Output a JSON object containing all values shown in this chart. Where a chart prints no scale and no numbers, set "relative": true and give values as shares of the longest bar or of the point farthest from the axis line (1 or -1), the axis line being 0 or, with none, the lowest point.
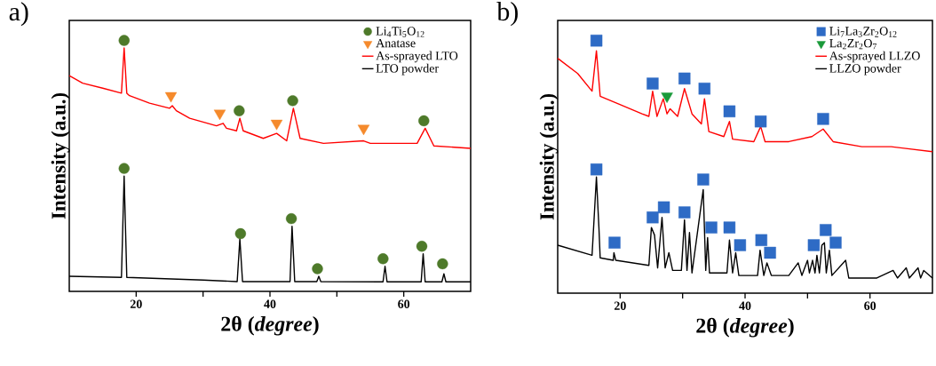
{
  "chart_data": [
    {
      "type": "line",
      "title": "a)",
      "xlabel": "2θ (*degree*)",
      "ylabel": "Intensity (a.u.)",
      "relative": true,
      "xlim": [
        10,
        70
      ],
      "xticks": [
        20,
        40,
        60
      ],
      "tick_labels": "x",
      "legend": "top right",
      "series": [
        {
          "name": "Li$_{4}$Ti$_{5}$O$_{12}$",
          "type": "scatter",
          "marker": "circle",
          "color": "#4e7a2a",
          "x": [
            18.2,
            35.4,
            43.4,
            63,
            18.2,
            35.6,
            43.2,
            47.1,
            56.9,
            62.7,
            65.8
          ],
          "values": [
            1.0,
            0.72,
            0.76,
            0.68,
            0.49,
            0.23,
            0.29,
            0.09,
            0.13,
            0.18,
            0.11
          ]
        },
        {
          "name": "Anatase",
          "type": "scatter",
          "marker": "triangle",
          "color": "#f58a2c",
          "x": [
            25.2,
            32.5,
            41,
            54
          ],
          "values": [
            0.78,
            0.71,
            0.67,
            0.65
          ]
        },
        {
          "name": "As-sprayed LTO",
          "color": "#ff0000",
          "x": [
            10,
            12,
            15,
            17.8,
            18.2,
            18.6,
            19,
            22,
            25,
            25.4,
            26,
            28,
            32,
            33,
            33.5,
            35,
            35.5,
            36,
            39,
            41,
            42.5,
            43.5,
            44.5,
            48,
            54,
            55,
            56,
            62,
            63.2,
            64.5,
            70
          ],
          "values": [
            0.86,
            0.83,
            0.81,
            0.79,
            0.97,
            0.79,
            0.78,
            0.75,
            0.73,
            0.74,
            0.72,
            0.69,
            0.66,
            0.67,
            0.65,
            0.64,
            0.69,
            0.64,
            0.61,
            0.63,
            0.6,
            0.73,
            0.61,
            0.59,
            0.6,
            0.59,
            0.59,
            0.59,
            0.65,
            0.58,
            0.57
          ]
        },
        {
          "name": "LTO powder",
          "color": "#000000",
          "x": [
            10,
            17.8,
            18.2,
            18.6,
            30,
            35.1,
            35.5,
            35.9,
            43,
            43.3,
            43.7,
            47.0,
            47.3,
            47.6,
            56.9,
            57.2,
            57.5,
            62.6,
            62.9,
            63.2,
            65.7,
            66,
            66.3,
            70
          ],
          "values": [
            0.06,
            0.056,
            0.46,
            0.056,
            0.045,
            0.039,
            0.21,
            0.039,
            0.039,
            0.26,
            0.039,
            0.039,
            0.06,
            0.039,
            0.038,
            0.1,
            0.038,
            0.038,
            0.15,
            0.038,
            0.038,
            0.07,
            0.038,
            0.038
          ]
        }
      ]
    },
    {
      "type": "line",
      "title": "b)",
      "xlabel": "2θ (*degree*)",
      "ylabel": "Intensity (a.u.)",
      "relative": true,
      "xlim": [
        10,
        70
      ],
      "xticks": [
        20,
        40,
        60
      ],
      "tick_labels": "x",
      "legend": "top right",
      "series": [
        {
          "name": "Li$_{7}$La$_{3}$Zr$_{2}$O$_{12}$",
          "type": "scatter",
          "marker": "square",
          "color": "#2e6bc5",
          "x": [
            16.2,
            25.2,
            30.3,
            33.5,
            37.5,
            42.5,
            52.5,
            16.2,
            19.1,
            25.2,
            27.0,
            30.3,
            33.3,
            34.6,
            37.5,
            39.2,
            42.6,
            44.0,
            51.0,
            52.9,
            54.5
          ],
          "values": [
            1.0,
            0.83,
            0.85,
            0.81,
            0.72,
            0.68,
            0.69,
            0.49,
            0.2,
            0.3,
            0.34,
            0.32,
            0.45,
            0.26,
            0.26,
            0.19,
            0.21,
            0.16,
            0.19,
            0.25,
            0.2
          ]
        },
        {
          "name": "La$_{2}$Zr$_{2}$O$_{7}$",
          "type": "scatter",
          "marker": "triangle",
          "color": "#1a9a3a",
          "x": [
            27.5
          ],
          "values": [
            0.78
          ]
        },
        {
          "name": "As-sprayed LLZO",
          "color": "#ff0000",
          "x": [
            10,
            13.2,
            15.5,
            16.2,
            16.8,
            19.7,
            23.5,
            24.6,
            25.2,
            25.9,
            26.9,
            27.5,
            28.0,
            29.2,
            30.3,
            31.5,
            33.0,
            33.5,
            34.2,
            36.6,
            37.5,
            38.0,
            41.4,
            42.5,
            43.2,
            47.0,
            50.7,
            52.5,
            54.1,
            58.7,
            63.4,
            70
          ],
          "values": [
            0.93,
            0.87,
            0.8,
            0.96,
            0.78,
            0.75,
            0.71,
            0.7,
            0.8,
            0.7,
            0.77,
            0.71,
            0.73,
            0.7,
            0.81,
            0.71,
            0.67,
            0.77,
            0.64,
            0.62,
            0.68,
            0.61,
            0.6,
            0.66,
            0.6,
            0.6,
            0.62,
            0.65,
            0.6,
            0.58,
            0.58,
            0.56
          ]
        },
        {
          "name": "LLZO powder",
          "color": "#000000",
          "x": [
            10,
            15.5,
            16.2,
            16.6,
            16.8,
            18.9,
            19.0,
            19.3,
            24.6,
            25.0,
            25.5,
            26.0,
            26.7,
            27.2,
            27.8,
            28.4,
            29.8,
            30.3,
            30.7,
            31.1,
            31.5,
            33.3,
            33.7,
            34.0,
            34.3,
            37.1,
            37.5,
            38.0,
            38.5,
            39.0,
            42.0,
            42.4,
            43.0,
            43.5,
            44.2,
            47.0,
            48.5,
            49.1,
            50.0,
            50.3,
            50.8,
            51.2,
            51.5,
            51.9,
            52.3,
            52.7,
            53.0,
            53.5,
            53.9,
            56.1,
            56.6,
            61.1,
            63.7,
            64.4,
            65.8,
            66.3,
            67.7,
            68.1,
            68.6,
            70
          ],
          "values": [
            0.19,
            0.15,
            0.46,
            0.26,
            0.14,
            0.13,
            0.16,
            0.13,
            0.11,
            0.26,
            0.23,
            0.1,
            0.3,
            0.1,
            0.16,
            0.09,
            0.09,
            0.29,
            0.09,
            0.24,
            0.08,
            0.41,
            0.09,
            0.22,
            0.08,
            0.08,
            0.21,
            0.08,
            0.16,
            0.07,
            0.07,
            0.17,
            0.07,
            0.12,
            0.07,
            0.07,
            0.12,
            0.07,
            0.13,
            0.08,
            0.13,
            0.08,
            0.15,
            0.08,
            0.19,
            0.2,
            0.08,
            0.17,
            0.07,
            0.13,
            0.06,
            0.06,
            0.09,
            0.06,
            0.1,
            0.06,
            0.1,
            0.06,
            0.09,
            0.06
          ]
        }
      ]
    }
  ]
}
